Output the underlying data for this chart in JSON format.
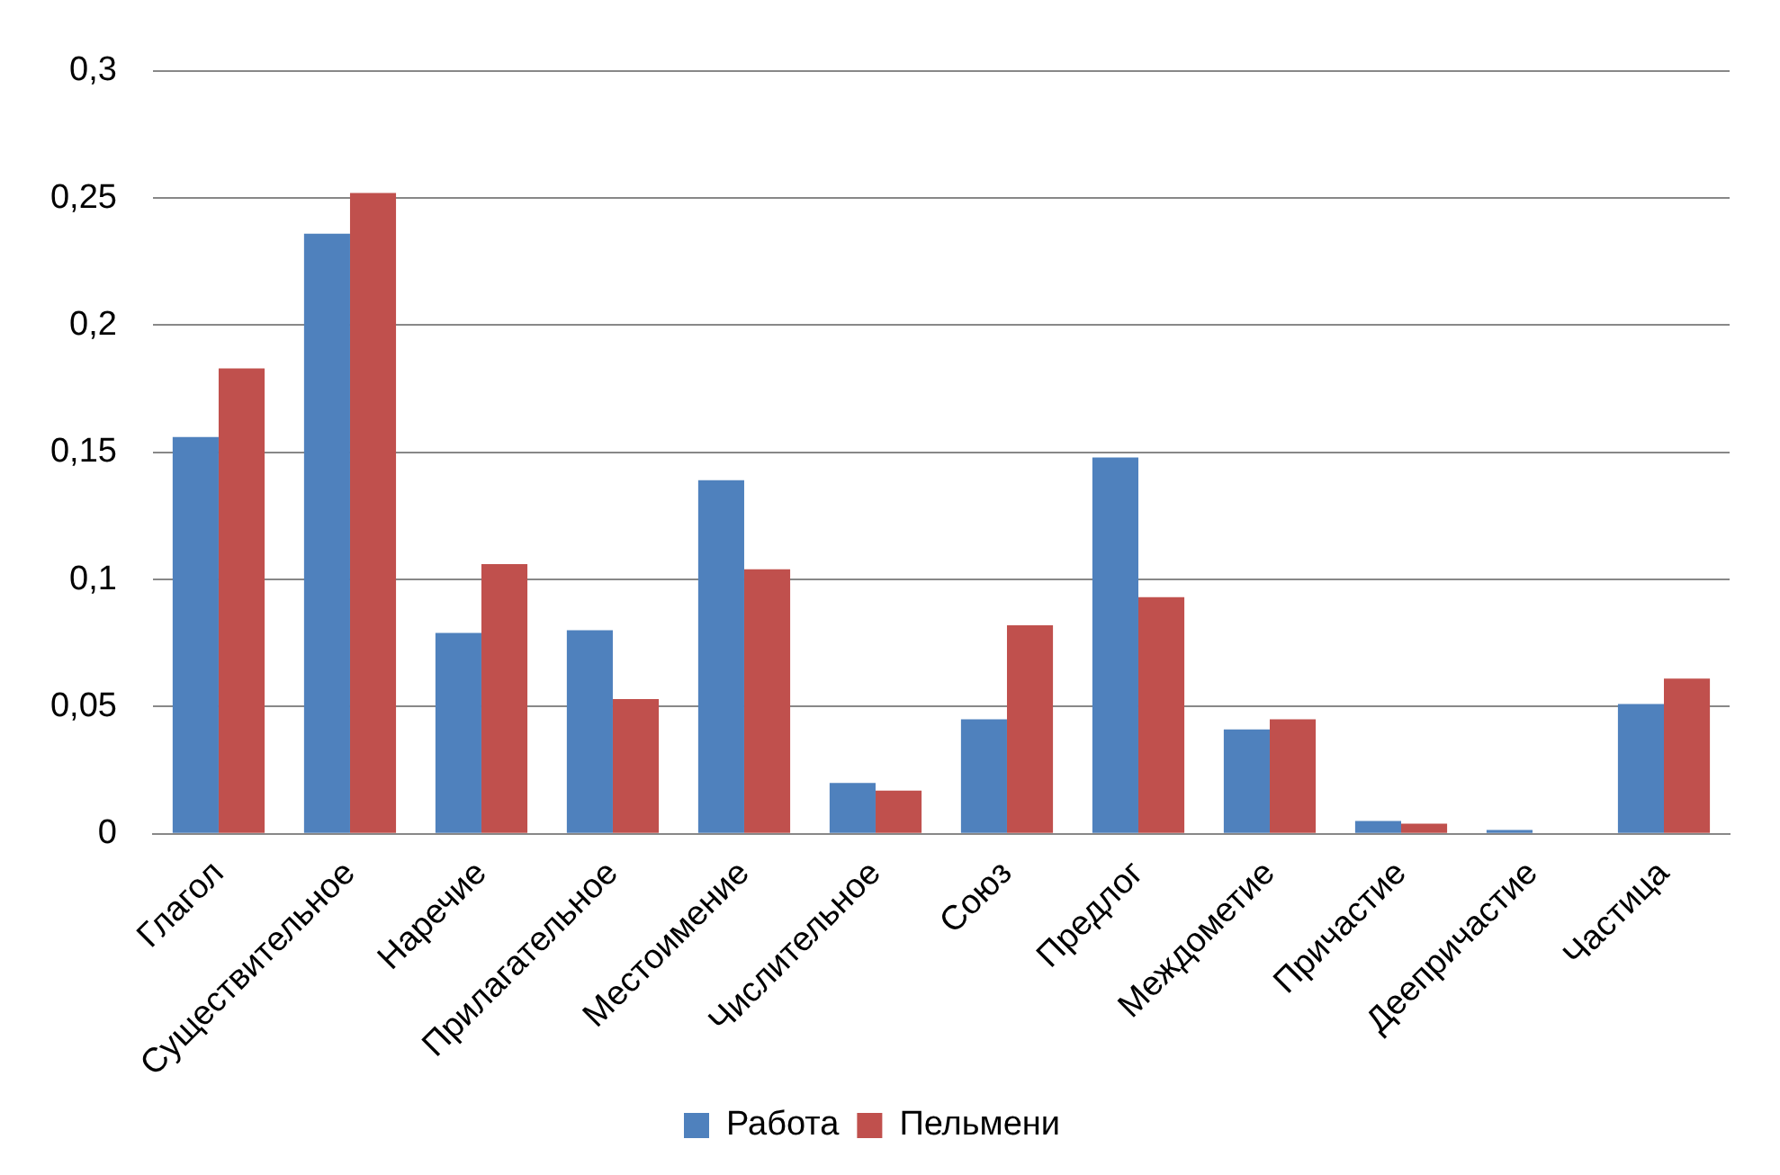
{
  "chart_data": {
    "type": "bar",
    "categories": [
      "Глагол",
      "Существительное",
      "Наречие",
      "Прилагательное",
      "Местоимение",
      "Числительное",
      "Союз",
      "Предлог",
      "Междометие",
      "Причастие",
      "Деепричастие",
      "Частица"
    ],
    "series": [
      {
        "name": "Работа",
        "color": "#4f81bd",
        "values": [
          0.156,
          0.236,
          0.079,
          0.08,
          0.139,
          0.02,
          0.045,
          0.148,
          0.041,
          0.005,
          0.0015,
          0.051
        ]
      },
      {
        "name": "Пельмени",
        "color": "#c0504d",
        "values": [
          0.183,
          0.252,
          0.106,
          0.053,
          0.104,
          0.017,
          0.082,
          0.093,
          0.045,
          0.004,
          0,
          0.061
        ]
      }
    ],
    "ylim": [
      0,
      0.3
    ],
    "yticks": [
      {
        "value": 0,
        "label": "0"
      },
      {
        "value": 0.05,
        "label": "0,05"
      },
      {
        "value": 0.1,
        "label": "0,1"
      },
      {
        "value": 0.15,
        "label": "0,15"
      },
      {
        "value": 0.2,
        "label": "0,2"
      },
      {
        "value": 0.25,
        "label": "0,25"
      },
      {
        "value": 0.3,
        "label": "0,3"
      }
    ],
    "grid": "y",
    "legend": "bottom"
  }
}
